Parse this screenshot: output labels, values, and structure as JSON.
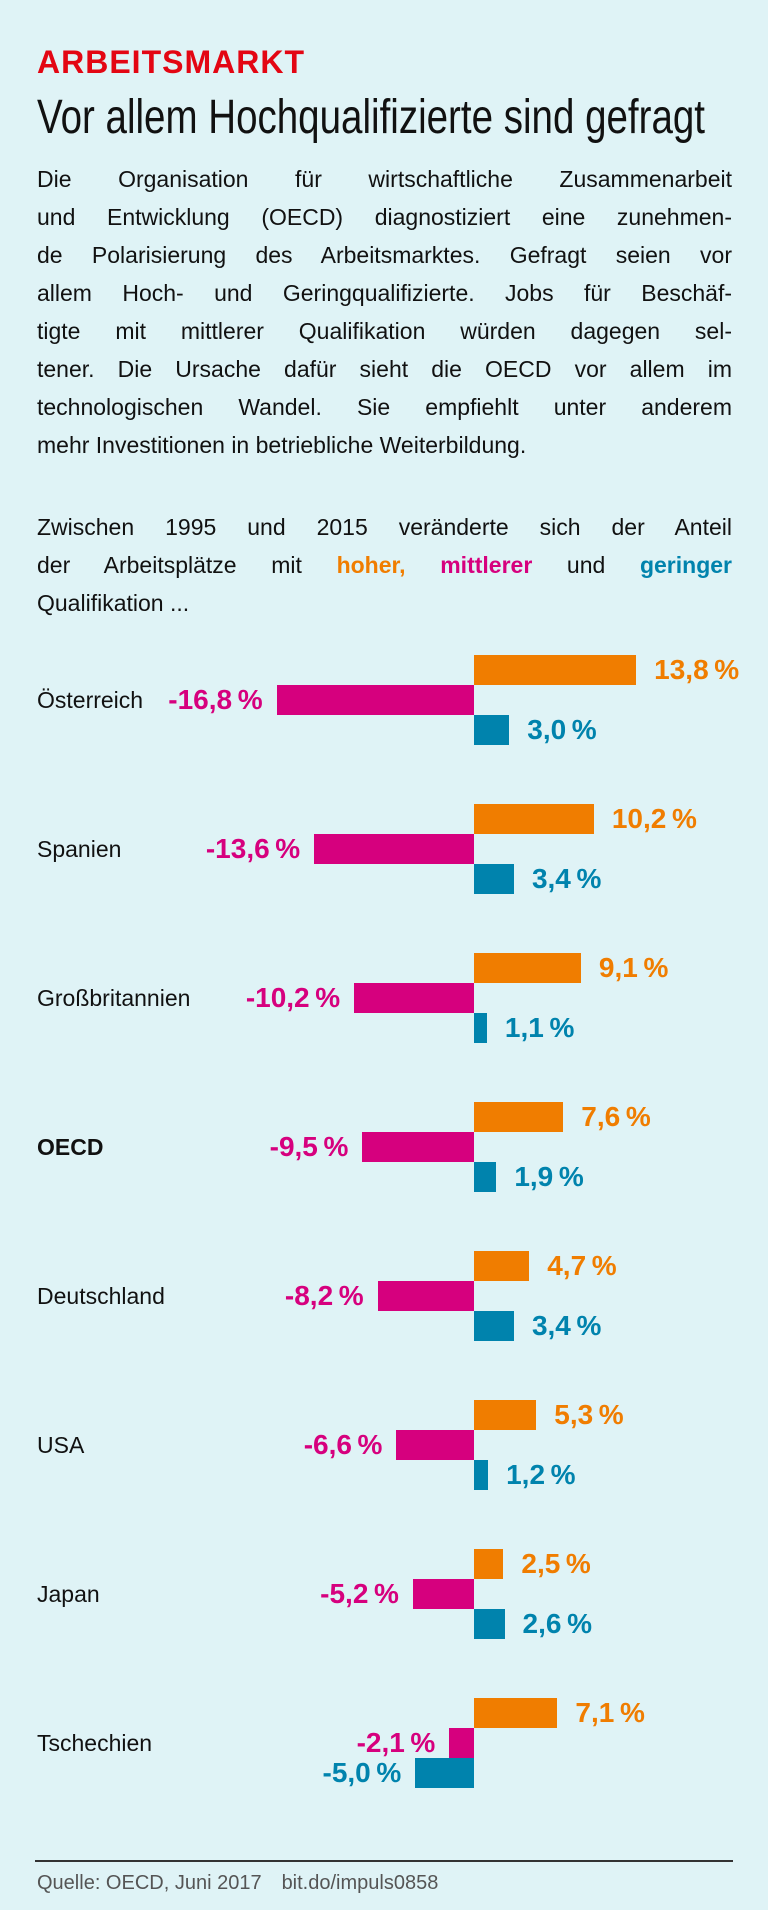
{
  "kicker": "ARBEITSMARKT",
  "headline": "Vor allem Hochqualifizierte sind gefragt",
  "body_lines": [
    "Die Organisation für wirtschaftliche Zusammenarbeit",
    "und Entwicklung (OECD) diagnostiziert eine zunehmen-",
    "de Polarisierung des Arbeitsmarktes. Gefragt seien vor",
    "allem Hoch- und Geringqualifizierte. Jobs für Beschäf-",
    "tigte mit mittlerer Qualifikation würden dagegen sel-",
    "tener. Die Ursache dafür sieht die OECD vor allem im",
    "technologischen Wandel. Sie empfiehlt unter anderem",
    "mehr Investitionen in betriebliche Weiterbildung."
  ],
  "intro": {
    "line1": "Zwischen 1995 und 2015 veränderte sich der Anteil",
    "line2_prefix": "der Arbeitsplätze mit ",
    "word_high": "hoher,",
    "word_mid": "mittlerer",
    "word_and": " und ",
    "word_low": "geringer",
    "line3": "Qualifikation ..."
  },
  "colors": {
    "high": "#f07d00",
    "mid": "#d6007e",
    "low": "#0083ad",
    "kicker": "#e30613",
    "background": "#dff3f6"
  },
  "chart_data": {
    "type": "bar",
    "orientation": "horizontal",
    "categories": [
      "Österreich",
      "Spanien",
      "Großbritannien",
      "OECD",
      "Deutschland",
      "USA",
      "Japan",
      "Tschechien"
    ],
    "highlight_category": "OECD",
    "unit": "%",
    "series": [
      {
        "name": "hoher",
        "color": "#f07d00",
        "values": [
          13.8,
          10.2,
          9.1,
          7.6,
          4.7,
          5.3,
          2.5,
          7.1
        ]
      },
      {
        "name": "mittlerer",
        "color": "#d6007e",
        "values": [
          -16.8,
          -13.6,
          -10.2,
          -9.5,
          -8.2,
          -6.6,
          -5.2,
          -2.1
        ]
      },
      {
        "name": "geringer",
        "color": "#0083ad",
        "values": [
          3.0,
          3.4,
          1.1,
          1.9,
          3.4,
          1.2,
          2.6,
          -5.0
        ]
      }
    ],
    "grid": false
  },
  "footer": {
    "source": "Quelle: OECD, Juni 2017",
    "link": "bit.do/impuls0858"
  }
}
